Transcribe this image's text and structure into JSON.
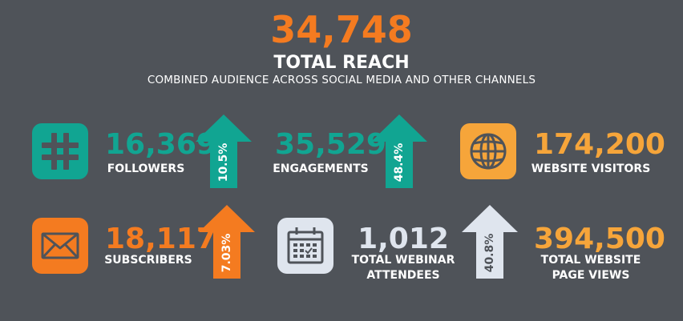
{
  "hero": {
    "total": "34,748",
    "title": "TOTAL REACH",
    "subtitle": "COMBINED AUDIENCE ACROSS SOCIAL MEDIA AND OTHER CHANNELS"
  },
  "stats": {
    "followers": {
      "value": "16,369",
      "label": "FOLLOWERS",
      "icon": "hashtag-icon",
      "color": "#11a592"
    },
    "engagements": {
      "value": "35,529",
      "label": "ENGAGEMENTS",
      "color": "#11a592"
    },
    "website_visitors": {
      "value": "174,200",
      "label": "WEBSITE VISITORS",
      "icon": "globe-icon",
      "color": "#f6a53a"
    },
    "subscribers": {
      "value": "18,117",
      "label": "SUBSCRIBERS",
      "icon": "envelope-icon",
      "color": "#f47b20"
    },
    "webinar": {
      "value": "1,012",
      "label_line1": "TOTAL WEBINAR",
      "label_line2": "ATTENDEES",
      "icon": "calendar-icon",
      "color": "#dfe5ee"
    },
    "page_views": {
      "value": "394,500",
      "label_line1": "TOTAL WEBSITE",
      "label_line2": "PAGE VIEWS",
      "color": "#f6a53a"
    }
  },
  "growth": {
    "followers": {
      "percent": "10.5%",
      "color": "#11a592",
      "direction": "up"
    },
    "engagements": {
      "percent": "48.4%",
      "color": "#11a592",
      "direction": "up"
    },
    "subscribers": {
      "percent": "7.03%",
      "color": "#f47b20",
      "direction": "up"
    },
    "webinar": {
      "percent": "40.8%",
      "color": "#dfe5ee",
      "direction": "up"
    }
  }
}
